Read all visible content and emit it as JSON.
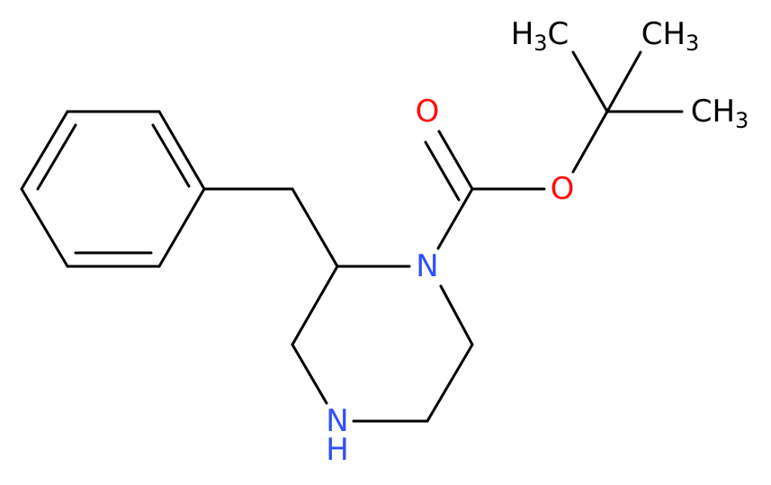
{
  "atoms": [
    {
      "parts": [
        "O"
      ]
    },
    {
      "parts": [
        "O"
      ]
    },
    {
      "parts": [
        "N"
      ]
    },
    {
      "parts": [
        "N"
      ]
    },
    {
      "parts": [
        "H"
      ]
    },
    {
      "parts": [
        "H",
        "3",
        "C"
      ]
    },
    {
      "parts": [
        "C",
        "H",
        "3"
      ]
    },
    {
      "parts": [
        "C",
        "H",
        "3"
      ]
    }
  ]
}
